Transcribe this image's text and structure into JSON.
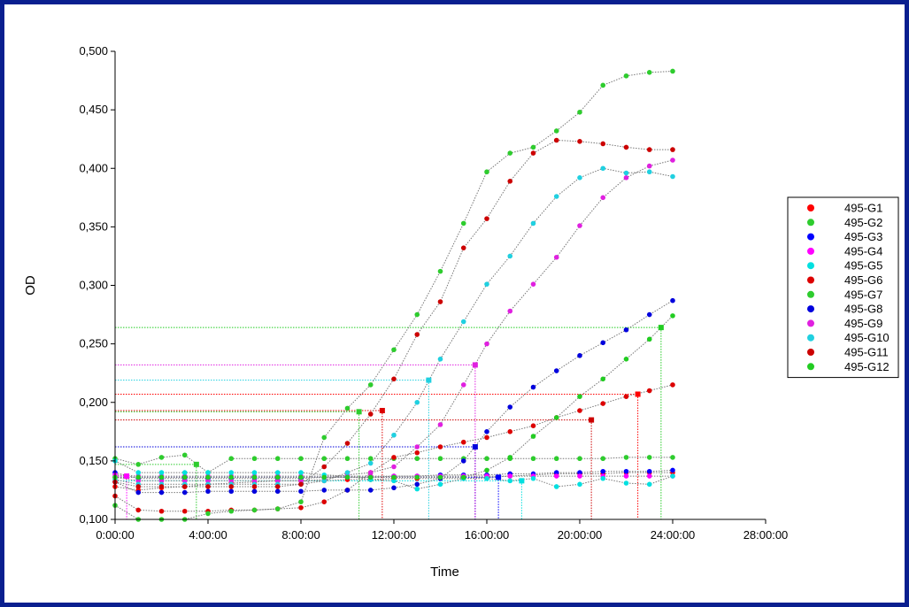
{
  "chart_data": {
    "type": "scatter",
    "xlabel": "Time",
    "ylabel": "OD",
    "xlim": [
      0,
      28
    ],
    "ylim": [
      0.1,
      0.5
    ],
    "x_ticks": [
      0,
      4,
      8,
      12,
      16,
      20,
      24,
      28
    ],
    "x_tick_labels": [
      "0:00:00",
      "4:00:00",
      "8:00:00",
      "12:00:00",
      "16:00:00",
      "20:00:00",
      "24:00:00",
      "28:00:00"
    ],
    "y_ticks": [
      0.1,
      0.15,
      0.2,
      0.25,
      0.3,
      0.35,
      0.4,
      0.45,
      0.5
    ],
    "y_tick_labels": [
      "0,100",
      "0,150",
      "0,200",
      "0,250",
      "0,300",
      "0,350",
      "0,400",
      "0,450",
      "0,500"
    ],
    "legend_position": "right",
    "x": [
      0,
      1,
      2,
      3,
      4,
      5,
      6,
      7,
      8,
      9,
      10,
      11,
      12,
      13,
      14,
      15,
      16,
      17,
      18,
      19,
      20,
      21,
      22,
      23,
      24
    ],
    "series": [
      {
        "name": "495-G1",
        "color": "#ff0000",
        "values": [
          0.128,
          0.125,
          0.127,
          0.128,
          0.13,
          0.131,
          0.132,
          0.133,
          0.133,
          0.133,
          0.134,
          0.134,
          0.135,
          0.135,
          0.135,
          0.135,
          0.136,
          0.137,
          0.138,
          0.139,
          0.139,
          0.139,
          0.14,
          0.14,
          0.14
        ],
        "marker": {
          "x": 22.5,
          "y": 0.207
        }
      },
      {
        "name": "495-G2",
        "color": "#2ecc2e",
        "values": [
          0.152,
          0.147,
          0.153,
          0.155,
          0.14,
          0.152,
          0.152,
          0.152,
          0.152,
          0.152,
          0.152,
          0.152,
          0.152,
          0.152,
          0.152,
          0.152,
          0.152,
          0.152,
          0.152,
          0.152,
          0.152,
          0.152,
          0.153,
          0.153,
          0.153
        ],
        "marker": {
          "x": 3.5,
          "y": 0.147
        }
      },
      {
        "name": "495-G3",
        "color": "#0000ff",
        "values": [
          0.14,
          0.135,
          0.135,
          0.135,
          0.135,
          0.135,
          0.135,
          0.135,
          0.135,
          0.136,
          0.136,
          0.136,
          0.137,
          0.137,
          0.138,
          0.138,
          0.138,
          0.139,
          0.139,
          0.14,
          0.14,
          0.141,
          0.141,
          0.141,
          0.142
        ],
        "marker": {
          "x": 16.5,
          "y": 0.136
        }
      },
      {
        "name": "495-G4",
        "color": "#ff00ff",
        "values": [
          0.138,
          0.137,
          0.137,
          0.137,
          0.137,
          0.137,
          0.137,
          0.137,
          0.137,
          0.137,
          0.137,
          0.137,
          0.137,
          0.137,
          0.137,
          0.137,
          0.137,
          0.137,
          0.137,
          0.137,
          0.137,
          0.137,
          0.137,
          0.137,
          0.137
        ],
        "marker": {
          "x": 0.5,
          "y": 0.137
        }
      },
      {
        "name": "495-G5",
        "color": "#00e0e0",
        "values": [
          0.15,
          0.14,
          0.14,
          0.14,
          0.14,
          0.14,
          0.14,
          0.14,
          0.14,
          0.138,
          0.137,
          0.134,
          0.133,
          0.126,
          0.13,
          0.135,
          0.135,
          0.133,
          0.135,
          0.128,
          0.13,
          0.135,
          0.131,
          0.13,
          0.137
        ],
        "marker": {
          "x": 17.5,
          "y": 0.133
        }
      },
      {
        "name": "495-G6",
        "color": "#dd0000",
        "values": [
          0.12,
          0.108,
          0.107,
          0.107,
          0.107,
          0.108,
          0.108,
          0.109,
          0.11,
          0.115,
          0.125,
          0.14,
          0.153,
          0.157,
          0.162,
          0.166,
          0.17,
          0.175,
          0.18,
          0.187,
          0.193,
          0.199,
          0.205,
          0.21,
          0.215
        ],
        "marker": {
          "x": 11.5,
          "y": 0.193
        }
      },
      {
        "name": "495-G7",
        "color": "#2ecc2e",
        "values": [
          0.112,
          0.1,
          0.1,
          0.1,
          0.105,
          0.107,
          0.108,
          0.109,
          0.115,
          0.17,
          0.195,
          0.215,
          0.245,
          0.275,
          0.312,
          0.353,
          0.397,
          0.413,
          0.418,
          0.432,
          0.448,
          0.471,
          0.479,
          0.482,
          0.483
        ],
        "marker": {
          "x": 10.5,
          "y": 0.192
        }
      },
      {
        "name": "495-G8",
        "color": "#0000dd",
        "values": [
          0.132,
          0.123,
          0.123,
          0.123,
          0.124,
          0.124,
          0.124,
          0.124,
          0.124,
          0.125,
          0.125,
          0.125,
          0.127,
          0.13,
          0.135,
          0.15,
          0.175,
          0.196,
          0.213,
          0.227,
          0.24,
          0.251,
          0.262,
          0.275,
          0.287
        ],
        "marker": {
          "x": 15.5,
          "y": 0.162
        }
      },
      {
        "name": "495-G9",
        "color": "#e020e0",
        "values": [
          0.136,
          0.133,
          0.133,
          0.133,
          0.133,
          0.133,
          0.133,
          0.133,
          0.133,
          0.134,
          0.138,
          0.14,
          0.145,
          0.162,
          0.181,
          0.215,
          0.25,
          0.278,
          0.301,
          0.324,
          0.351,
          0.375,
          0.392,
          0.402,
          0.407
        ],
        "marker": {
          "x": 15.5,
          "y": 0.232
        }
      },
      {
        "name": "495-G10",
        "color": "#20d0e0",
        "values": [
          0.134,
          0.13,
          0.13,
          0.13,
          0.13,
          0.13,
          0.13,
          0.13,
          0.13,
          0.133,
          0.14,
          0.148,
          0.172,
          0.2,
          0.237,
          0.269,
          0.301,
          0.325,
          0.353,
          0.376,
          0.392,
          0.4,
          0.396,
          0.397,
          0.393
        ],
        "marker": {
          "x": 13.5,
          "y": 0.219
        }
      },
      {
        "name": "495-G11",
        "color": "#cc0000",
        "values": [
          0.132,
          0.128,
          0.128,
          0.128,
          0.128,
          0.128,
          0.128,
          0.128,
          0.13,
          0.145,
          0.165,
          0.19,
          0.22,
          0.258,
          0.286,
          0.332,
          0.357,
          0.389,
          0.413,
          0.424,
          0.423,
          0.421,
          0.418,
          0.416,
          0.416
        ],
        "marker": {
          "x": 20.5,
          "y": 0.185
        }
      },
      {
        "name": "495-G12",
        "color": "#22cc22",
        "values": [
          0.136,
          0.136,
          0.136,
          0.136,
          0.136,
          0.136,
          0.136,
          0.136,
          0.136,
          0.136,
          0.136,
          0.136,
          0.136,
          0.136,
          0.136,
          0.136,
          0.142,
          0.153,
          0.171,
          0.187,
          0.205,
          0.22,
          0.237,
          0.254,
          0.274
        ],
        "marker": {
          "x": 23.5,
          "y": 0.264
        }
      }
    ]
  }
}
